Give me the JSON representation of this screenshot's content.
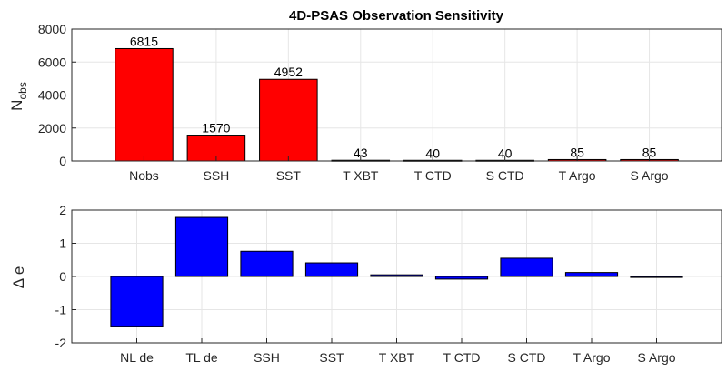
{
  "chart_data": [
    {
      "type": "bar",
      "title": "4D-PSAS Observation Sensitivity",
      "ylabel_main": "N",
      "ylabel_sub": "obs",
      "categories": [
        "Nobs",
        "SSH",
        "SST",
        "T XBT",
        "T CTD",
        "S CTD",
        "T Argo",
        "S Argo"
      ],
      "values": [
        6815,
        1570,
        4952,
        43,
        40,
        40,
        85,
        85
      ],
      "data_labels": [
        "6815",
        "1570",
        "4952",
        "43",
        "40",
        "40",
        "85",
        "85"
      ],
      "ylim": [
        0,
        8000
      ],
      "yticks": [
        0,
        2000,
        4000,
        6000,
        8000
      ],
      "bar_color": "#ff0000",
      "grid": true
    },
    {
      "type": "bar",
      "title": "",
      "ylabel": "Δ e",
      "categories": [
        "NL de",
        "TL de",
        "SSH",
        "SST",
        "T XBT",
        "T CTD",
        "S CTD",
        "T Argo",
        "S Argo"
      ],
      "values": [
        -1.5,
        1.78,
        0.76,
        0.41,
        0.05,
        -0.08,
        0.55,
        0.12,
        -0.03
      ],
      "ylim": [
        -2,
        2
      ],
      "yticks": [
        -2,
        -1,
        0,
        1,
        2
      ],
      "bar_color": "#0000ff",
      "grid": true
    }
  ]
}
